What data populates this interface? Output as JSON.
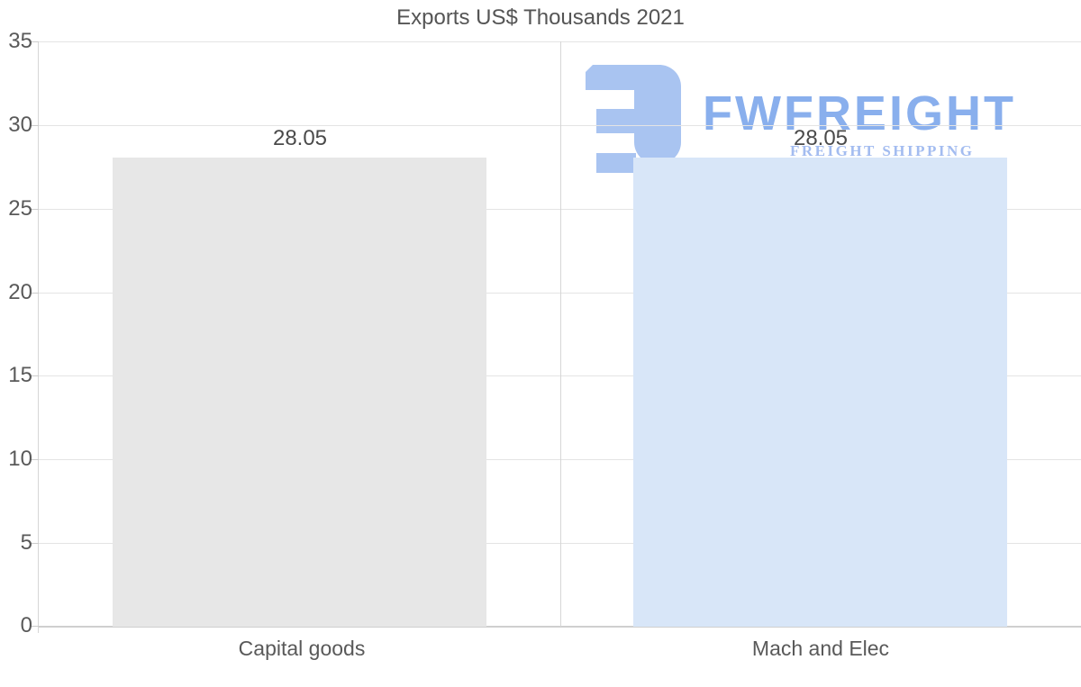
{
  "title": "Exports US$ Thousands 2021",
  "watermark": {
    "brand": "FWFREIGHT",
    "tagline": "FREIGHT SHIPPING"
  },
  "y_axis": {
    "ticks": [
      "35",
      "30",
      "25",
      "20",
      "15",
      "10",
      "5",
      "0"
    ]
  },
  "chart_data": {
    "type": "bar",
    "title": "Exports US$ Thousands 2021",
    "categories": [
      "Capital goods",
      "Mach and Elec"
    ],
    "values": [
      28.05,
      28.05
    ],
    "value_labels": [
      "28.05",
      "28.05"
    ],
    "ylabel": "",
    "xlabel": "",
    "ylim": [
      0,
      35
    ],
    "ytick_interval": 5,
    "grid": true,
    "legend": "none",
    "bar_colors": [
      "#e7e7e7",
      "#d8e6f8"
    ]
  },
  "colors": {
    "watermark_glyph": "#a9c4f1",
    "watermark_brand": "#89afed",
    "watermark_tagline": "#a3bcf0",
    "axis_text": "#595959",
    "value_text": "#4a4a4a",
    "gridline": "#e4e4e4"
  }
}
